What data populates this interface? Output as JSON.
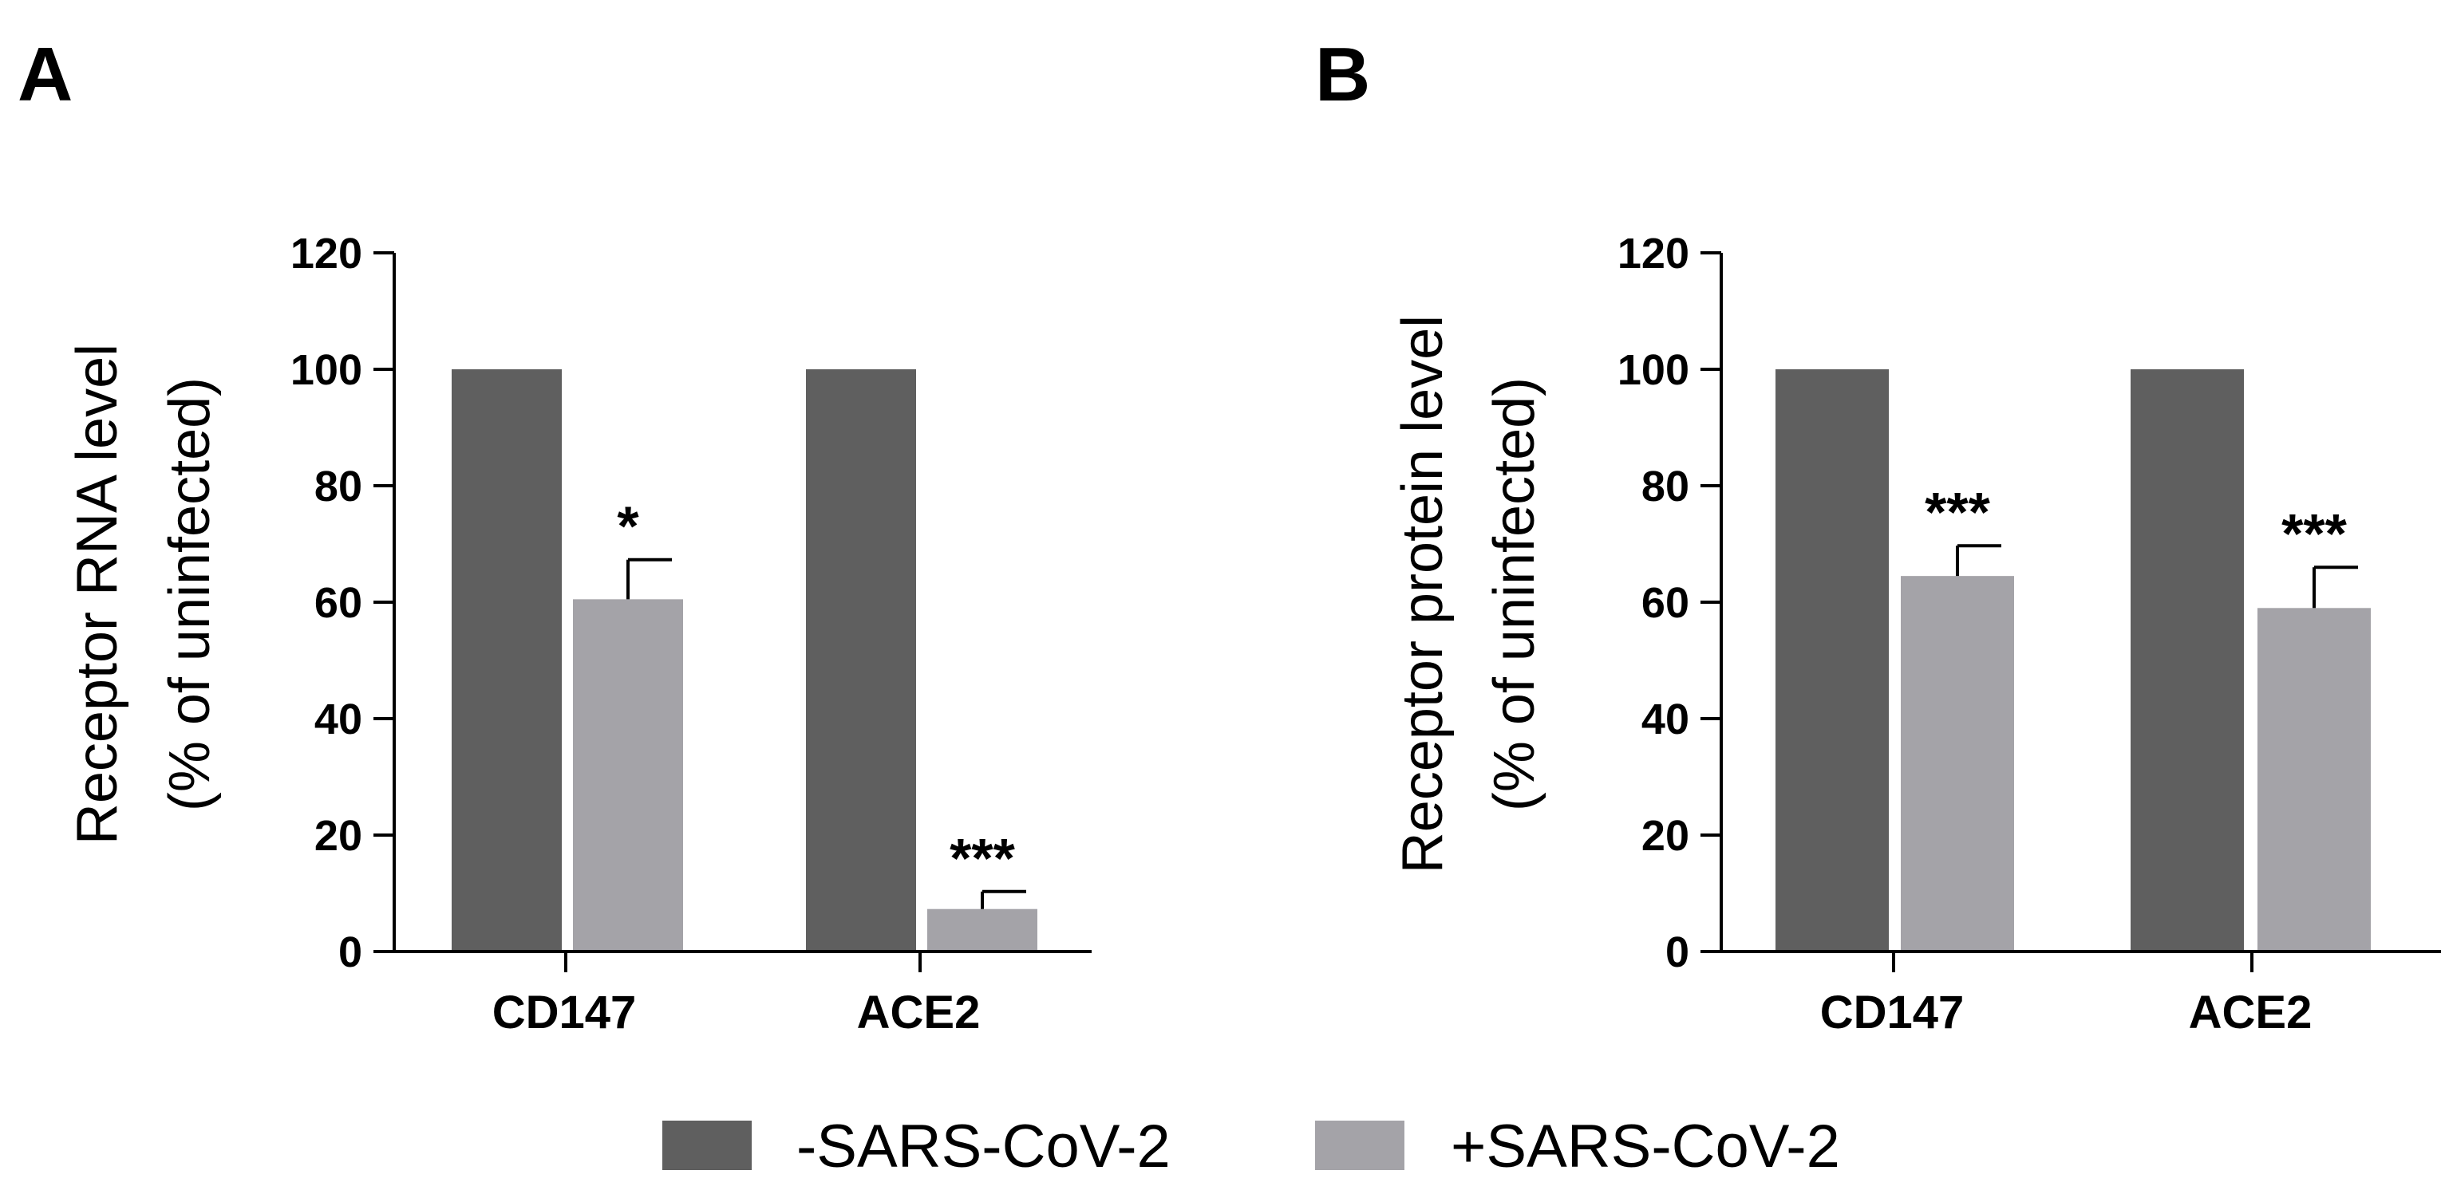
{
  "colors": {
    "uninfected": "#5f5f5f",
    "infected": "#a4a3a8",
    "axis": "#000000"
  },
  "chart_data": [
    {
      "panel": "A",
      "type": "bar",
      "categories": [
        "CD147",
        "ACE2"
      ],
      "ylabel_line1": "Receptor RNA level",
      "ylabel_line2": "(% of uninfected)",
      "ylim": [
        0,
        120
      ],
      "yticks": [
        0,
        20,
        40,
        60,
        80,
        100,
        120
      ],
      "series": [
        {
          "name": "-SARS-CoV-2",
          "values": [
            100,
            100
          ],
          "errors": [
            0,
            0
          ]
        },
        {
          "name": "+SARS-CoV-2",
          "values": [
            60.5,
            7.3
          ],
          "errors": [
            6.8,
            3.0
          ]
        }
      ],
      "annotations": [
        "",
        "",
        "*",
        "***"
      ]
    },
    {
      "panel": "B",
      "type": "bar",
      "categories": [
        "CD147",
        "ACE2"
      ],
      "ylabel_line1": "Receptor protein level",
      "ylabel_line2": "(% of uninfected)",
      "ylim": [
        0,
        120
      ],
      "yticks": [
        0,
        20,
        40,
        60,
        80,
        100,
        120
      ],
      "series": [
        {
          "name": "-SARS-CoV-2",
          "values": [
            100,
            100
          ],
          "errors": [
            0,
            0
          ]
        },
        {
          "name": "+SARS-CoV-2",
          "values": [
            64.5,
            59.0
          ],
          "errors": [
            5.2,
            7.0
          ]
        }
      ],
      "annotations": [
        "",
        "",
        "***",
        "***"
      ]
    }
  ],
  "legend": [
    {
      "label": "-SARS-CoV-2",
      "color": "#5f5f5f"
    },
    {
      "label": "+SARS-CoV-2",
      "color": "#a4a3a8"
    }
  ]
}
